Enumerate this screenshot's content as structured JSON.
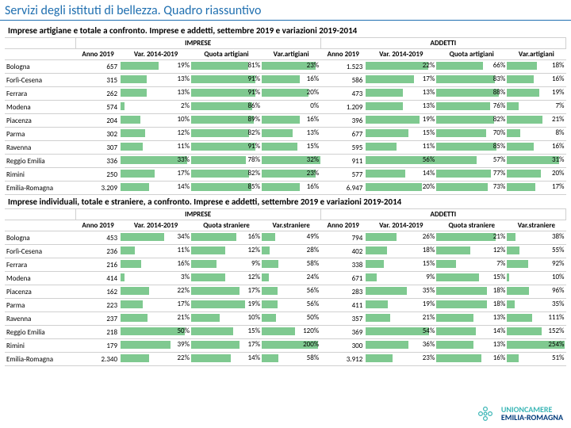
{
  "page_title": "Servizi degli istituti di bellezza. Quadro riassuntivo",
  "footer": {
    "line1": "UNIONCAMERE",
    "line2": "EMILIA-ROMAGNA"
  },
  "colors": {
    "bar_green": "#7fc990",
    "title_blue": "#1f6fb0",
    "grid": "#d0d0d0"
  },
  "sections": [
    {
      "subtitle": "Imprese artigiane e totale a confronto. Imprese e addetti, settembre 2019 e variazioni 2019-2014",
      "header_groups": [
        "IMPRESE",
        "ADDETTI"
      ],
      "header_cols": [
        "Anno 2019",
        "Var. 2014-2019",
        "Quota artigiani",
        "Var.artigiani",
        "Anno 2019",
        "Var. 2014-2019",
        "Quota artigiani",
        "Var.artigiani"
      ],
      "col_scales": {
        "var1": 35,
        "quota1": 100,
        "varext1": 25,
        "var2": 25,
        "quota2": 100,
        "varext2": 35
      },
      "rows": [
        {
          "name": "Bologna",
          "anno1": "657",
          "var1": 19,
          "quota1": 81,
          "varext1": 23,
          "anno2": "1.523",
          "var2": 22,
          "quota2": 66,
          "varext2": 18
        },
        {
          "name": "Forlì-Cesena",
          "anno1": "315",
          "var1": 13,
          "quota1": 91,
          "varext1": 16,
          "anno2": "586",
          "var2": 17,
          "quota2": 83,
          "varext2": 16
        },
        {
          "name": "Ferrara",
          "anno1": "262",
          "var1": 13,
          "quota1": 91,
          "varext1": 20,
          "anno2": "473",
          "var2": 13,
          "quota2": 88,
          "varext2": 19
        },
        {
          "name": "Modena",
          "anno1": "574",
          "var1": 2,
          "quota1": 86,
          "varext1": 0,
          "anno2": "1.209",
          "var2": 13,
          "quota2": 76,
          "varext2": 7
        },
        {
          "name": "Piacenza",
          "anno1": "204",
          "var1": 10,
          "quota1": 89,
          "varext1": 16,
          "anno2": "396",
          "var2": 19,
          "quota2": 82,
          "varext2": 21
        },
        {
          "name": "Parma",
          "anno1": "302",
          "var1": 12,
          "quota1": 82,
          "varext1": 13,
          "anno2": "677",
          "var2": 15,
          "quota2": 70,
          "varext2": 8
        },
        {
          "name": "Ravenna",
          "anno1": "307",
          "var1": 11,
          "quota1": 91,
          "varext1": 15,
          "anno2": "595",
          "var2": 11,
          "quota2": 85,
          "varext2": 16
        },
        {
          "name": "Reggio Emilia",
          "anno1": "336",
          "var1": 33,
          "quota1": 78,
          "varext1": 32,
          "anno2": "911",
          "var2": 56,
          "quota2": 57,
          "varext2": 31
        },
        {
          "name": "Rimini",
          "anno1": "250",
          "var1": 17,
          "quota1": 82,
          "varext1": 23,
          "anno2": "577",
          "var2": 14,
          "quota2": 77,
          "varext2": 20
        },
        {
          "name": "Emilia-Romagna",
          "anno1": "3.209",
          "var1": 14,
          "quota1": 85,
          "varext1": 16,
          "anno2": "6.947",
          "var2": 20,
          "quota2": 73,
          "varext2": 17
        }
      ]
    },
    {
      "subtitle": "Imprese individuali, totale e straniere, a confronto. Imprese e addetti, settembre 2019 e variazioni 2019-2014",
      "header_groups": [
        "IMPRESE",
        "ADDETTI"
      ],
      "header_cols": [
        "Anno 2019",
        "Var. 2014-2019",
        "Quota straniere",
        "Var.straniere",
        "Anno 2019",
        "Var. 2014-2019",
        "Quota straniere",
        "Var.straniere"
      ],
      "col_scales": {
        "var1": 55,
        "quota1": 25,
        "varext1": 210,
        "var2": 60,
        "quota2": 25,
        "varext2": 260
      },
      "rows": [
        {
          "name": "Bologna",
          "anno1": "453",
          "var1": 34,
          "quota1": 16,
          "varext1": 49,
          "anno2": "794",
          "var2": 26,
          "quota2": 21,
          "varext2": 38
        },
        {
          "name": "Forlì-Cesena",
          "anno1": "236",
          "var1": 11,
          "quota1": 12,
          "varext1": 28,
          "anno2": "402",
          "var2": 18,
          "quota2": 12,
          "varext2": 55
        },
        {
          "name": "Ferrara",
          "anno1": "216",
          "var1": 16,
          "quota1": 9,
          "varext1": 58,
          "anno2": "338",
          "var2": 15,
          "quota2": 7,
          "varext2": 92
        },
        {
          "name": "Modena",
          "anno1": "414",
          "var1": 3,
          "quota1": 12,
          "varext1": 24,
          "anno2": "671",
          "var2": 9,
          "quota2": 15,
          "varext2": 10
        },
        {
          "name": "Piacenza",
          "anno1": "162",
          "var1": 22,
          "quota1": 17,
          "varext1": 56,
          "anno2": "283",
          "var2": 35,
          "quota2": 18,
          "varext2": 96
        },
        {
          "name": "Parma",
          "anno1": "223",
          "var1": 17,
          "quota1": 19,
          "varext1": 56,
          "anno2": "411",
          "var2": 19,
          "quota2": 18,
          "varext2": 35
        },
        {
          "name": "Ravenna",
          "anno1": "237",
          "var1": 21,
          "quota1": 10,
          "varext1": 50,
          "anno2": "357",
          "var2": 21,
          "quota2": 13,
          "varext2": 111
        },
        {
          "name": "Reggio Emilia",
          "anno1": "218",
          "var1": 50,
          "quota1": 15,
          "varext1": 120,
          "anno2": "369",
          "var2": 54,
          "quota2": 14,
          "varext2": 152
        },
        {
          "name": "Rimini",
          "anno1": "179",
          "var1": 39,
          "quota1": 17,
          "varext1": 200,
          "anno2": "300",
          "var2": 36,
          "quota2": 13,
          "varext2": 254
        },
        {
          "name": "Emilia-Romagna",
          "anno1": "2.340",
          "var1": 22,
          "quota1": 14,
          "varext1": 58,
          "anno2": "3.912",
          "var2": 23,
          "quota2": 16,
          "varext2": 51
        }
      ]
    }
  ]
}
